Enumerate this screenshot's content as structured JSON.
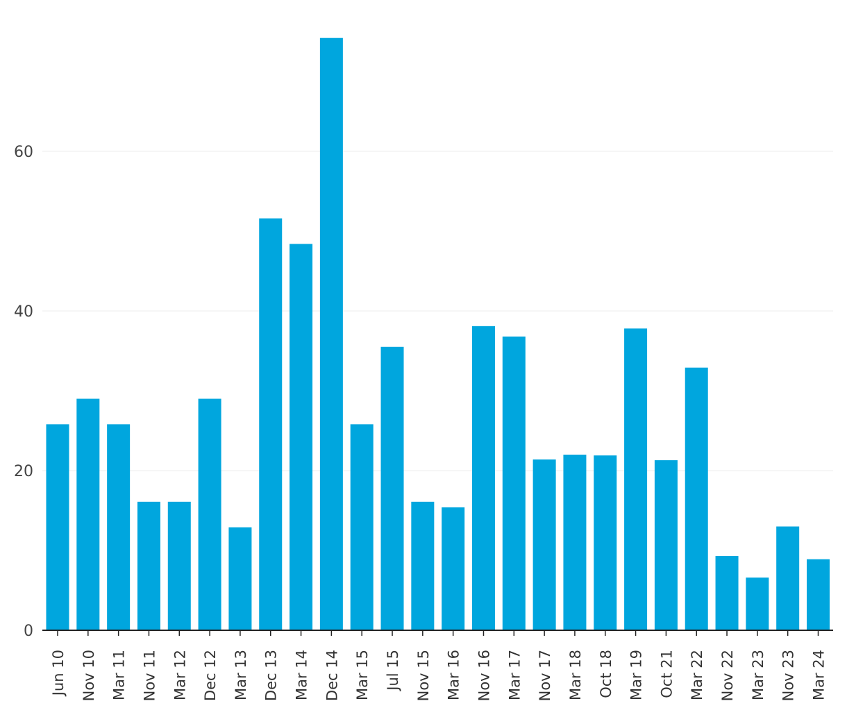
{
  "chart_data": {
    "type": "bar",
    "title": "",
    "xlabel": "",
    "ylabel": "",
    "categories": [
      "Jun 10",
      "Nov 10",
      "Mar 11",
      "Nov 11",
      "Mar 12",
      "Dec 12",
      "Mar 13",
      "Dec 13",
      "Mar 14",
      "Dec 14",
      "Mar 15",
      "Jul 15",
      "Nov 15",
      "Mar 16",
      "Nov 16",
      "Mar 17",
      "Nov 17",
      "Mar 18",
      "Oct 18",
      "Mar 19",
      "Oct 21",
      "Mar 22",
      "Nov 22",
      "Mar 23",
      "Nov 23",
      "Mar 24"
    ],
    "values": [
      25.8,
      29.0,
      25.8,
      16.1,
      16.1,
      29.0,
      12.9,
      51.6,
      48.4,
      74.2,
      25.8,
      35.5,
      16.1,
      15.4,
      38.1,
      36.8,
      21.4,
      22.0,
      21.9,
      37.8,
      21.3,
      32.9,
      9.3,
      6.6,
      13.0,
      8.9
    ],
    "ylim": [
      0,
      76
    ],
    "yticks": [
      0,
      20,
      40,
      60
    ],
    "grid": true,
    "bar_color": "#00a6de"
  }
}
